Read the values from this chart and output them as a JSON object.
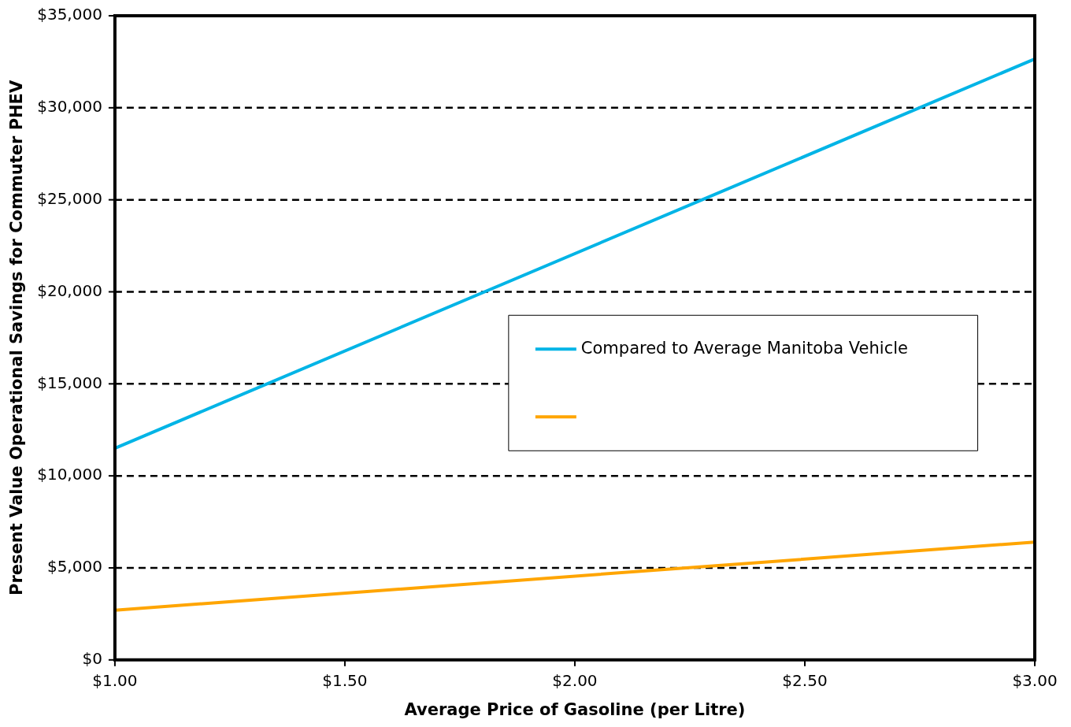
{
  "chart_data": {
    "type": "line",
    "xlabel": "Average Price of Gasoline (per Litre)",
    "ylabel": "Present Value Operational Savings for Commuter PHEV",
    "xlim": [
      1,
      3
    ],
    "xticks": [
      {
        "value": 1,
        "label": "$1.00"
      },
      {
        "value": 1.5,
        "label": "$1.50"
      },
      {
        "value": 2,
        "label": "$2.00"
      },
      {
        "value": 2.5,
        "label": "$2.50"
      },
      {
        "value": 3,
        "label": "$3.00"
      }
    ],
    "ylim": [
      0,
      35000
    ],
    "yticks": [
      {
        "value": 0,
        "label": "$0"
      },
      {
        "value": 5000,
        "label": "$5,000"
      },
      {
        "value": 10000,
        "label": "$10,000"
      },
      {
        "value": 15000,
        "label": "$15,000"
      },
      {
        "value": 20000,
        "label": "$20,000"
      },
      {
        "value": 25000,
        "label": "$25,000"
      },
      {
        "value": 30000,
        "label": "$30,000"
      },
      {
        "value": 35000,
        "label": "$35,000"
      }
    ],
    "x": [
      1,
      3
    ],
    "grid": "y",
    "legend": "right",
    "marker": "none",
    "line_style": "solid",
    "series": [
      {
        "name": "Compared to Average Manitoba Vehicle",
        "color": "#00b4e6",
        "values": [
          11500,
          32650
        ]
      },
      {
        "color": "#ffa500",
        "values": [
          2700,
          6400
        ]
      }
    ]
  }
}
